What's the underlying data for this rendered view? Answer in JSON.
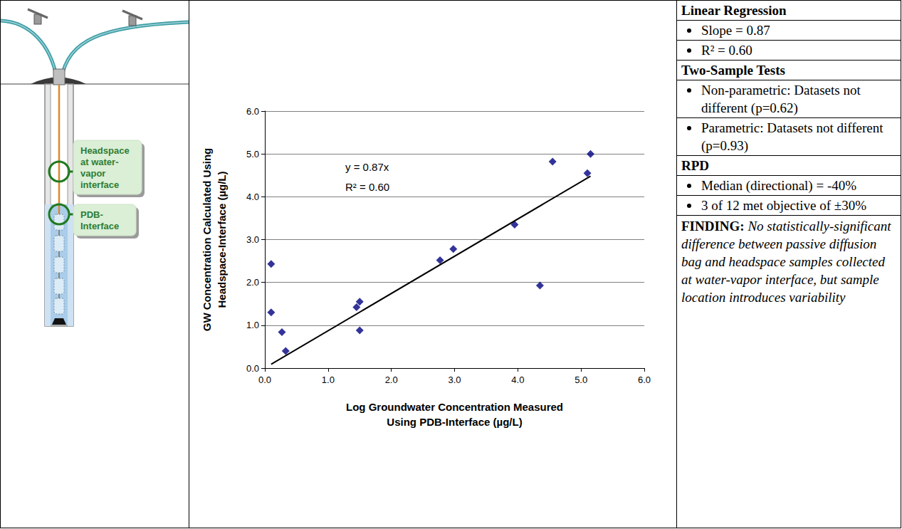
{
  "chart_data": {
    "type": "scatter",
    "x_label": "Log Groundwater Concentration Measured Using PDB-Interface (µg/L)",
    "y_label": "GW Concentration Calculated Using Headspace-Interface (µg/L)",
    "annotations": [
      "y = 0.87x",
      "R² = 0.60"
    ],
    "series": [
      {
        "type": "scatter",
        "color": "#000080",
        "marker": "diamond",
        "x": [
          0.1,
          0.1,
          0.27,
          0.33,
          1.45,
          1.5,
          1.5,
          2.77,
          2.98,
          3.95,
          4.35,
          4.55,
          5.1,
          5.15
        ],
        "values": [
          2.43,
          1.3,
          0.84,
          0.4,
          1.42,
          1.55,
          0.88,
          2.52,
          2.78,
          3.35,
          1.93,
          4.82,
          4.55,
          5.0
        ]
      },
      {
        "type": "line",
        "color": "#000000",
        "line_style": "solid",
        "x": [
          0.1,
          5.15
        ],
        "values": [
          0.09,
          4.48
        ]
      }
    ],
    "xlim": [
      0,
      6
    ],
    "xticks": [
      {
        "value": 0,
        "label": "0.0"
      },
      {
        "value": 1,
        "label": "1.0"
      },
      {
        "value": 2,
        "label": "2.0"
      },
      {
        "value": 3,
        "label": "3.0"
      },
      {
        "value": 4,
        "label": "4.0"
      },
      {
        "value": 5,
        "label": "5.0"
      },
      {
        "value": 6,
        "label": "6.0"
      }
    ],
    "ylim": [
      0,
      6
    ],
    "yticks": [
      {
        "value": 0,
        "label": "0.0"
      },
      {
        "value": 1,
        "label": "1.0"
      },
      {
        "value": 2,
        "label": "2.0"
      },
      {
        "value": 3,
        "label": "3.0"
      },
      {
        "value": 4,
        "label": "4.0"
      },
      {
        "value": 5,
        "label": "5.0"
      },
      {
        "value": 6,
        "label": "6.0"
      }
    ],
    "grid": "y"
  },
  "diagram": {
    "labels": [
      "Headspace at water-vapor interface",
      "PDB-Interface"
    ]
  },
  "stats_table": {
    "sections": [
      {
        "heading": "Linear Regression",
        "items": [
          "Slope = 0.87",
          "R² = 0.60"
        ]
      },
      {
        "heading": "Two-Sample Tests",
        "items": [
          "Non-parametric: Datasets not different (p=0.62)",
          "Parametric: Datasets not different (p=0.93)"
        ]
      },
      {
        "heading": "RPD",
        "items": [
          "Median (directional) = -40%",
          "3 of 12 met objective of ±30%"
        ]
      }
    ],
    "finding": {
      "label": "FINDING:",
      "text": "No statistically-significant difference between passive diffusion bag and headspace samples collected at water-vapor interface, but sample location introduces variability"
    }
  }
}
